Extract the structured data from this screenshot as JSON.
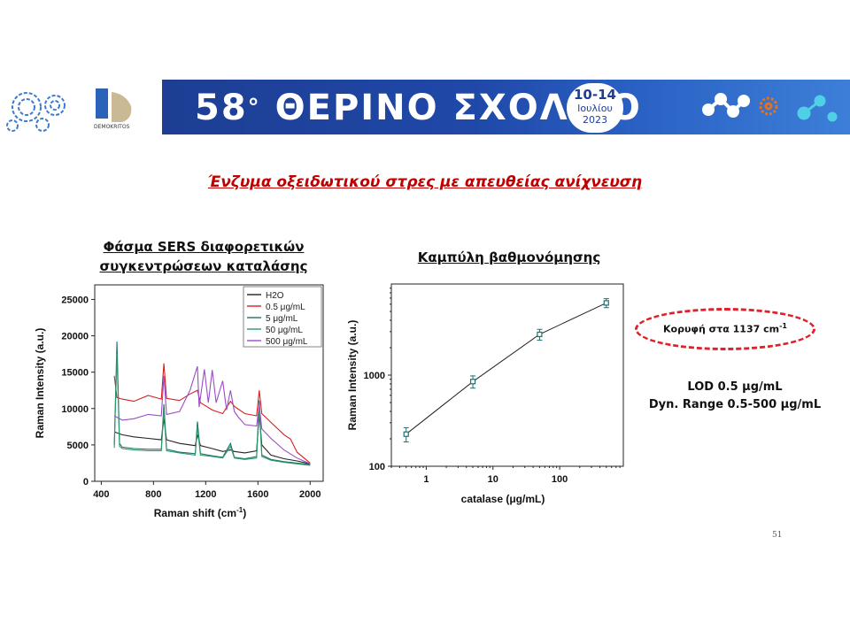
{
  "banner": {
    "title_number": "58",
    "title_degree": "°",
    "title_text": "ΘΕΡΙΝΟ ΣΧΟΛΕΙΟ",
    "date_range": "10-14",
    "date_month": "Ιουλίου",
    "date_year": "2023",
    "org_label": "DEMOKRITOS",
    "colors": {
      "banner_blue": "#1d3e93",
      "banner_magenta": "#8a1c6c",
      "gear_blue": "#3b7bd0",
      "gear_orange": "#e8701a"
    }
  },
  "slide": {
    "title": "Ένζυμα οξειδωτικού στρες με απευθείας ανίχνευση",
    "left_panel_title_line1": "Φάσμα SERS διαφορετικών",
    "left_panel_title_line2": "συγκεντρώσεων καταλάσης",
    "right_panel_title": "Καμπύλη βαθμονόμησης",
    "peak_label": "Κορυφή στα 1137 cm",
    "peak_label_sup": "-1",
    "lod_line": "LOD 0.5 μg/mL",
    "range_line": "Dyn. Range  0.5-500 μg/mL",
    "page_number": "51"
  },
  "chart_data": [
    {
      "type": "line",
      "title": "",
      "xlabel": "Raman shift (cm-1)",
      "ylabel": "Raman Intensity (a.u.)",
      "xlim": [
        350,
        2100
      ],
      "ylim": [
        0,
        27000
      ],
      "xticks": [
        400,
        800,
        1200,
        1600,
        2000
      ],
      "yticks": [
        0,
        5000,
        10000,
        15000,
        20000,
        25000
      ],
      "legend_position": "top-right",
      "series": [
        {
          "name": "H2O",
          "color": "#222222",
          "x": [
            500,
            560,
            650,
            760,
            860,
            880,
            900,
            1000,
            1120,
            1137,
            1160,
            1250,
            1330,
            1390,
            1420,
            1500,
            1590,
            1610,
            1630,
            1700,
            1800,
            1900,
            2000
          ],
          "y": [
            6800,
            6400,
            6100,
            5900,
            5700,
            8600,
            5700,
            5200,
            4900,
            6400,
            4900,
            4500,
            4100,
            4300,
            4100,
            3900,
            4200,
            9200,
            5000,
            3600,
            3100,
            2800,
            2400
          ]
        },
        {
          "name": "0.5 μg/mL",
          "color": "#d62020",
          "x": [
            500,
            520,
            560,
            650,
            760,
            860,
            880,
            900,
            1000,
            1080,
            1137,
            1160,
            1250,
            1330,
            1390,
            1420,
            1500,
            1590,
            1610,
            1630,
            1700,
            1800,
            1850,
            1900,
            2000
          ],
          "y": [
            14500,
            11500,
            11300,
            11000,
            11800,
            11300,
            16200,
            11400,
            11100,
            12000,
            12500,
            10800,
            9800,
            9300,
            11000,
            10300,
            9300,
            9000,
            12500,
            9300,
            8100,
            6400,
            5800,
            4000,
            2500
          ]
        },
        {
          "name": "5 μg/mL",
          "color": "#1f6f6f",
          "x": [
            500,
            520,
            540,
            560,
            650,
            760,
            860,
            880,
            900,
            1000,
            1120,
            1137,
            1160,
            1250,
            1330,
            1390,
            1420,
            1500,
            1590,
            1610,
            1630,
            1700,
            1800,
            1900,
            2000
          ],
          "y": [
            5000,
            19200,
            5200,
            4700,
            4500,
            4400,
            4400,
            10600,
            4400,
            4000,
            3800,
            8200,
            3800,
            3500,
            3300,
            5200,
            3300,
            3100,
            3400,
            11100,
            3600,
            3000,
            2700,
            2500,
            2300
          ]
        },
        {
          "name": "50 μg/mL",
          "color": "#2a9a6a",
          "x": [
            500,
            520,
            540,
            560,
            650,
            760,
            860,
            880,
            900,
            1000,
            1120,
            1137,
            1160,
            1250,
            1330,
            1390,
            1420,
            1500,
            1590,
            1610,
            1630,
            1700,
            1800,
            1900,
            2000
          ],
          "y": [
            4600,
            17500,
            4800,
            4500,
            4300,
            4200,
            4200,
            9800,
            4200,
            3900,
            3600,
            7500,
            3600,
            3400,
            3200,
            4800,
            3200,
            3000,
            3200,
            10200,
            3400,
            2900,
            2600,
            2400,
            2200
          ]
        },
        {
          "name": "500 μg/mL",
          "color": "#9b4dc7",
          "x": [
            500,
            520,
            560,
            650,
            760,
            860,
            880,
            900,
            1000,
            1080,
            1137,
            1150,
            1190,
            1220,
            1250,
            1280,
            1330,
            1360,
            1390,
            1420,
            1450,
            1500,
            1590,
            1610,
            1630,
            1700,
            1800,
            1900,
            2000
          ],
          "y": [
            9000,
            8800,
            8400,
            8600,
            9200,
            9000,
            14500,
            9200,
            9600,
            12500,
            15800,
            10200,
            15400,
            10800,
            15300,
            10800,
            13800,
            9800,
            12500,
            9600,
            8800,
            7800,
            7600,
            10500,
            7200,
            5900,
            4300,
            3200,
            2400
          ]
        }
      ]
    },
    {
      "type": "scatter",
      "title": "",
      "xlabel": "catalase (μg/mL)",
      "ylabel": "Raman Intensity (a.u.)",
      "xscale": "log",
      "yscale": "log",
      "xlim": [
        0.3,
        900
      ],
      "ylim": [
        100,
        10000
      ],
      "xticks": [
        1,
        10,
        100
      ],
      "yticks": [
        100,
        1000
      ],
      "x": [
        0.5,
        5,
        50,
        500
      ],
      "y": [
        225,
        850,
        2800,
        6200
      ],
      "yerr": [
        40,
        130,
        380,
        700
      ],
      "marker_color": "#1f6f6f",
      "connected": true
    }
  ]
}
